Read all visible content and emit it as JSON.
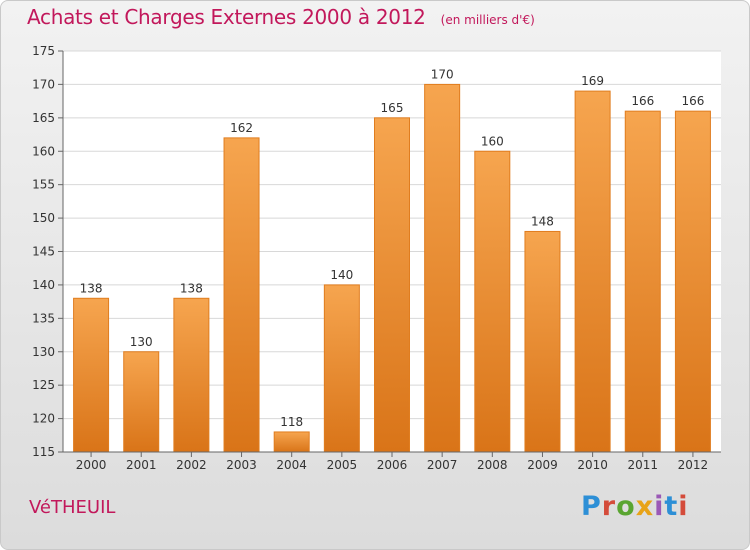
{
  "header": {
    "title": "Achats et Charges Externes 2000 à 2012",
    "unit_note": "(en milliers d'€)"
  },
  "footer": {
    "commune": "VéTHEUIL",
    "brand": "Proxiti",
    "brand_colors": [
      "#2d8fd6",
      "#d44b3a",
      "#5aa531",
      "#e8a317",
      "#9b59b6",
      "#2d8fd6",
      "#d44b3a"
    ]
  },
  "colors": {
    "bar_top": "#f6a54f",
    "bar_bottom": "#d97418",
    "bar_edge": "#e07d1f",
    "title": "#c2185b",
    "grid": "#d8d8d8",
    "axis_text": "#333333"
  },
  "chart_data": {
    "type": "bar",
    "categories": [
      "2000",
      "2001",
      "2002",
      "2003",
      "2004",
      "2005",
      "2006",
      "2007",
      "2008",
      "2009",
      "2010",
      "2011",
      "2012"
    ],
    "values": [
      138,
      130,
      138,
      162,
      118,
      140,
      165,
      170,
      160,
      148,
      169,
      166,
      166
    ],
    "title": "Achats et Charges Externes 2000 à 2012",
    "xlabel": "",
    "ylabel": "",
    "ylim": [
      115,
      175
    ],
    "yticks": [
      115,
      120,
      125,
      130,
      135,
      140,
      145,
      150,
      155,
      160,
      165,
      170,
      175
    ],
    "grid": true,
    "data_labels": true
  }
}
